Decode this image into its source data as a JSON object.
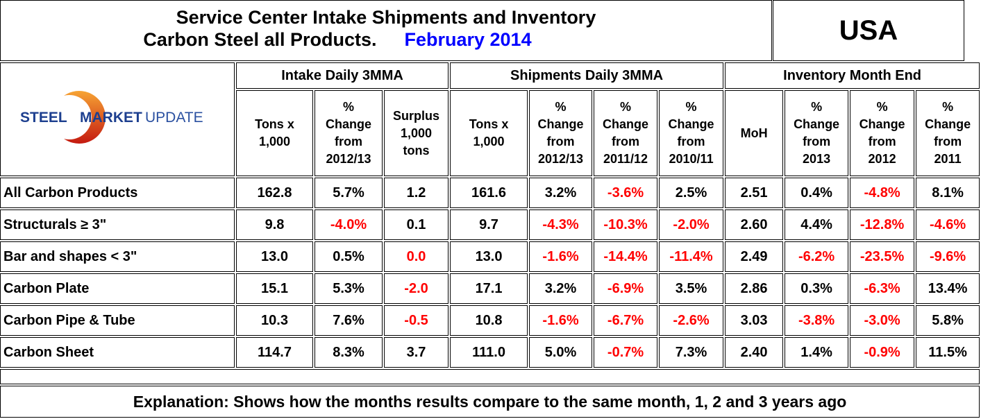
{
  "title": {
    "line1": "Service Center Intake Shipments and Inventory",
    "line2": "Carbon Steel all Products.",
    "date": "February 2014"
  },
  "country": "USA",
  "logo": {
    "text": "STEEL MARKET UPDATE"
  },
  "groups": [
    "Intake Daily 3MMA",
    "Shipments Daily 3MMA",
    "Inventory Month End"
  ],
  "subheaders": [
    [
      "Tons x",
      "1,000"
    ],
    [
      "%",
      "Change",
      "from",
      "2012/13"
    ],
    [
      "Surplus",
      "1,000",
      "tons"
    ],
    [
      "Tons x",
      "1,000"
    ],
    [
      "%",
      "Change",
      "from",
      "2012/13"
    ],
    [
      "%",
      "Change",
      "from",
      "2011/12"
    ],
    [
      "%",
      "Change",
      "from",
      "2010/11"
    ],
    [
      "MoH"
    ],
    [
      "%",
      "Change",
      "from",
      "2013"
    ],
    [
      "%",
      "Change",
      "from",
      "2012"
    ],
    [
      "%",
      "Change",
      "from",
      "2011"
    ]
  ],
  "rows": [
    {
      "label": "All Carbon Products",
      "values": [
        "162.8",
        "5.7%",
        "1.2",
        "161.6",
        "3.2%",
        "-3.6%",
        "2.5%",
        "2.51",
        "0.4%",
        "-4.8%",
        "8.1%"
      ]
    },
    {
      "label": "Structurals ≥ 3\"",
      "values": [
        "9.8",
        "-4.0%",
        "0.1",
        "9.7",
        "-4.3%",
        "-10.3%",
        "-2.0%",
        "2.60",
        "4.4%",
        "-12.8%",
        "-4.6%"
      ]
    },
    {
      "label": "Bar and shapes < 3\"",
      "values": [
        "13.0",
        "0.5%",
        "0.0",
        "13.0",
        "-1.6%",
        "-14.4%",
        "-11.4%",
        "2.49",
        "-6.2%",
        "-23.5%",
        "-9.6%"
      ]
    },
    {
      "label": "Carbon Plate",
      "values": [
        "15.1",
        "5.3%",
        "-2.0",
        "17.1",
        "3.2%",
        "-6.9%",
        "3.5%",
        "2.86",
        "0.3%",
        "-6.3%",
        "13.4%"
      ]
    },
    {
      "label": "Carbon Pipe & Tube",
      "values": [
        "10.3",
        "7.6%",
        "-0.5",
        "10.8",
        "-1.6%",
        "-6.7%",
        "-2.6%",
        "3.03",
        "-3.8%",
        "-3.0%",
        "5.8%"
      ]
    },
    {
      "label": "Carbon Sheet",
      "values": [
        "114.7",
        "8.3%",
        "3.7",
        "111.0",
        "5.0%",
        "-0.7%",
        "7.3%",
        "2.40",
        "1.4%",
        "-0.9%",
        "11.5%"
      ]
    }
  ],
  "red_cells": {
    "Bar and shapes < 3\"": [
      2
    ]
  },
  "colors": {
    "negative": "#ff0000",
    "date": "#0000ff"
  },
  "explanation": "Explanation: Shows how the months results compare to the same month, 1, 2 and 3 years ago"
}
